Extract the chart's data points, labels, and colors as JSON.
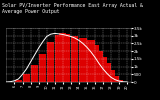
{
  "title": "Solar PV/Inverter Performance East Array Actual & Average Power Output",
  "title_fontsize": 3.5,
  "bg_color": "#000000",
  "plot_bg_color": "#000000",
  "fill_color": "#dd0000",
  "avg_line_color": "#ffffff",
  "grid_color": "#ffffff",
  "tick_color": "#ffffff",
  "spine_color": "#555555",
  "ylim": [
    0,
    3500
  ],
  "xlim": [
    5.0,
    20.5
  ],
  "ytick_labels": [
    "0",
    "500",
    "1k",
    "1.5k",
    "2k",
    "2.5k",
    "3k",
    "3.5k"
  ],
  "ytick_vals": [
    0,
    500,
    1000,
    1500,
    2000,
    2500,
    3000,
    3500
  ],
  "bar_hours": [
    5.5,
    6.5,
    7.5,
    8.5,
    9.5,
    10.5,
    11.5,
    12.0,
    12.5,
    13.5,
    14.5,
    15.5,
    16.0,
    16.5,
    17.0,
    17.5,
    18.0,
    18.5,
    19.0,
    19.5
  ],
  "bar_values": [
    30,
    150,
    550,
    1100,
    1800,
    2600,
    3050,
    3150,
    3100,
    3000,
    2850,
    2700,
    2400,
    2000,
    1650,
    1200,
    750,
    400,
    120,
    20
  ],
  "bar_width": 0.9,
  "avg_x": [
    5.0,
    5.5,
    6.0,
    6.5,
    7.0,
    7.5,
    8.0,
    8.5,
    9.0,
    9.5,
    10.0,
    10.5,
    11.0,
    11.5,
    12.0,
    12.5,
    13.0,
    13.5,
    14.0,
    14.5,
    15.0,
    15.5,
    16.0,
    16.5,
    17.0,
    17.5,
    18.0,
    18.5,
    19.0,
    19.5,
    20.0
  ],
  "avg_y": [
    0,
    20,
    80,
    200,
    500,
    850,
    1300,
    1750,
    2200,
    2600,
    2950,
    3100,
    3150,
    3120,
    3080,
    3020,
    2950,
    2850,
    2700,
    2500,
    2250,
    1950,
    1600,
    1200,
    850,
    550,
    300,
    150,
    60,
    15,
    0
  ],
  "figsize": [
    1.6,
    1.0
  ],
  "dpi": 100
}
